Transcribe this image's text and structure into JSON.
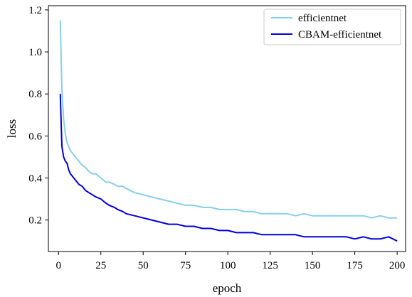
{
  "chart_data": {
    "type": "line",
    "title": "",
    "xlabel": "epoch",
    "ylabel": "loss",
    "xlim": [
      -6,
      205
    ],
    "ylim": [
      0.05,
      1.22
    ],
    "xticks": [
      0,
      25,
      50,
      75,
      100,
      125,
      150,
      175,
      200
    ],
    "yticks": [
      0.2,
      0.4,
      0.6,
      0.8,
      1.0,
      1.2
    ],
    "xtick_labels": [
      "0",
      "25",
      "50",
      "75",
      "100",
      "125",
      "150",
      "175",
      "200"
    ],
    "ytick_labels": [
      "0.2",
      "0.4",
      "0.6",
      "0.8",
      "1.0",
      "1.2"
    ],
    "grid": false,
    "legend_position": "top-right",
    "series": [
      {
        "name": "efficientnet",
        "color": "#87ceeb",
        "x": [
          1,
          2,
          3,
          4,
          5,
          6,
          7,
          8,
          9,
          10,
          12,
          14,
          16,
          18,
          20,
          22,
          25,
          28,
          30,
          33,
          35,
          38,
          40,
          45,
          50,
          55,
          60,
          65,
          70,
          75,
          80,
          85,
          90,
          95,
          100,
          105,
          110,
          115,
          120,
          125,
          130,
          135,
          140,
          145,
          150,
          155,
          160,
          165,
          170,
          175,
          180,
          185,
          190,
          195,
          200
        ],
        "values": [
          1.15,
          0.82,
          0.68,
          0.61,
          0.57,
          0.55,
          0.53,
          0.52,
          0.51,
          0.5,
          0.48,
          0.46,
          0.45,
          0.43,
          0.42,
          0.42,
          0.4,
          0.38,
          0.38,
          0.37,
          0.36,
          0.36,
          0.35,
          0.33,
          0.32,
          0.31,
          0.3,
          0.29,
          0.28,
          0.27,
          0.27,
          0.26,
          0.26,
          0.25,
          0.25,
          0.25,
          0.24,
          0.24,
          0.23,
          0.23,
          0.23,
          0.23,
          0.22,
          0.23,
          0.22,
          0.22,
          0.22,
          0.22,
          0.22,
          0.22,
          0.22,
          0.21,
          0.22,
          0.21,
          0.21
        ]
      },
      {
        "name": "CBAM-efficientnet",
        "color": "#0000dd",
        "x": [
          1,
          2,
          3,
          4,
          5,
          6,
          7,
          8,
          9,
          10,
          12,
          14,
          16,
          18,
          20,
          22,
          25,
          28,
          30,
          33,
          35,
          38,
          40,
          45,
          50,
          55,
          60,
          65,
          70,
          75,
          80,
          85,
          90,
          95,
          100,
          105,
          110,
          115,
          120,
          125,
          130,
          135,
          140,
          145,
          150,
          155,
          160,
          165,
          170,
          175,
          180,
          185,
          190,
          195,
          200
        ],
        "values": [
          0.8,
          0.55,
          0.5,
          0.48,
          0.47,
          0.44,
          0.42,
          0.41,
          0.4,
          0.39,
          0.37,
          0.36,
          0.34,
          0.33,
          0.32,
          0.31,
          0.3,
          0.28,
          0.27,
          0.26,
          0.25,
          0.24,
          0.23,
          0.22,
          0.21,
          0.2,
          0.19,
          0.18,
          0.18,
          0.17,
          0.17,
          0.16,
          0.16,
          0.15,
          0.15,
          0.14,
          0.14,
          0.14,
          0.13,
          0.13,
          0.13,
          0.13,
          0.13,
          0.12,
          0.12,
          0.12,
          0.12,
          0.12,
          0.12,
          0.11,
          0.12,
          0.11,
          0.11,
          0.12,
          0.1
        ]
      }
    ]
  }
}
